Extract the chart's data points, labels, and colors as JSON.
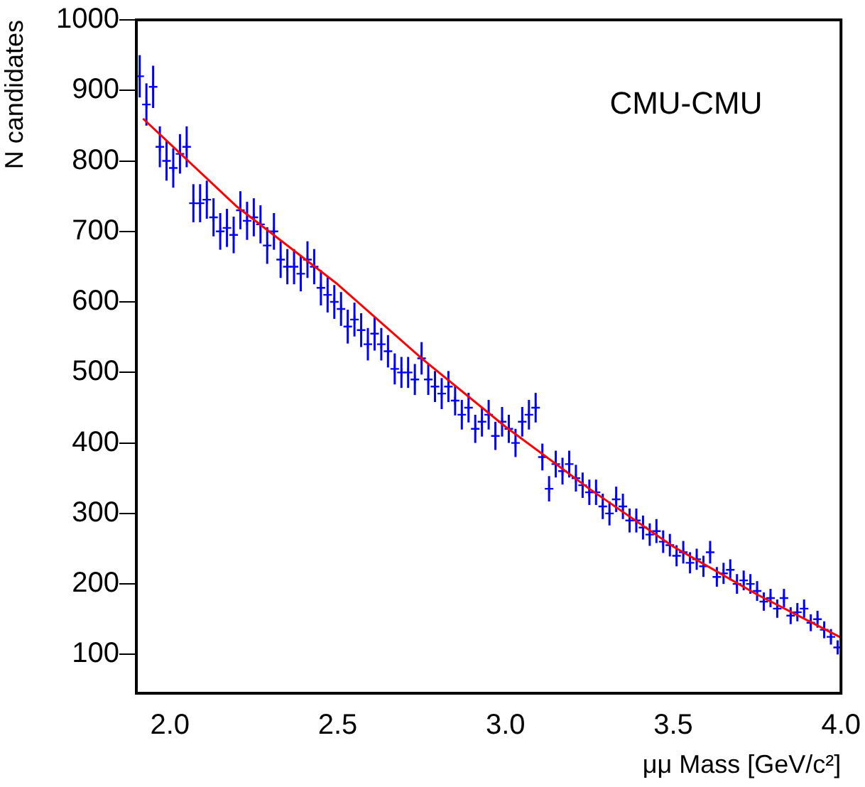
{
  "chart_data": {
    "type": "scatter",
    "xlabel": "μμ Mass [GeV/c²]",
    "ylabel": "N candidates",
    "annotations": [
      "CMU-CMU"
    ],
    "xlim": [
      1.9,
      4.0
    ],
    "ylim": [
      45,
      1000
    ],
    "xticks": [
      {
        "value": 2,
        "label": "2.0"
      },
      {
        "value": 2.5,
        "label": "2.5"
      },
      {
        "value": 3,
        "label": "3.0"
      },
      {
        "value": 3.5,
        "label": "3.5"
      },
      {
        "value": 4,
        "label": "4.0"
      }
    ],
    "yticks": [
      100,
      200,
      300,
      400,
      500,
      600,
      700,
      800,
      900,
      1000
    ],
    "grid": false,
    "legend": false,
    "series": [
      {
        "color": "#0000ff",
        "marker": "cross",
        "x": [
          1.91,
          1.93,
          1.95,
          1.97,
          1.99,
          2.01,
          2.03,
          2.05,
          2.07,
          2.09,
          2.11,
          2.13,
          2.15,
          2.17,
          2.19,
          2.21,
          2.23,
          2.25,
          2.27,
          2.29,
          2.31,
          2.33,
          2.35,
          2.37,
          2.39,
          2.41,
          2.43,
          2.45,
          2.47,
          2.49,
          2.51,
          2.53,
          2.55,
          2.57,
          2.59,
          2.61,
          2.63,
          2.65,
          2.67,
          2.69,
          2.71,
          2.73,
          2.75,
          2.77,
          2.79,
          2.81,
          2.83,
          2.85,
          2.87,
          2.89,
          2.91,
          2.93,
          2.95,
          2.97,
          2.99,
          3.01,
          3.03,
          3.05,
          3.07,
          3.09,
          3.11,
          3.13,
          3.15,
          3.17,
          3.19,
          3.21,
          3.23,
          3.25,
          3.27,
          3.29,
          3.31,
          3.33,
          3.35,
          3.37,
          3.39,
          3.41,
          3.43,
          3.45,
          3.47,
          3.49,
          3.51,
          3.53,
          3.55,
          3.57,
          3.59,
          3.61,
          3.63,
          3.65,
          3.67,
          3.69,
          3.71,
          3.73,
          3.75,
          3.77,
          3.79,
          3.81,
          3.83,
          3.85,
          3.87,
          3.89,
          3.91,
          3.93,
          3.95,
          3.97,
          3.99
        ],
        "values": [
          920,
          880,
          905,
          820,
          800,
          790,
          810,
          820,
          740,
          740,
          745,
          720,
          700,
          705,
          695,
          730,
          715,
          720,
          710,
          680,
          700,
          660,
          650,
          650,
          640,
          660,
          650,
          620,
          610,
          600,
          590,
          565,
          575,
          560,
          540,
          555,
          540,
          530,
          505,
          500,
          500,
          490,
          520,
          490,
          480,
          470,
          480,
          460,
          440,
          450,
          420,
          430,
          440,
          410,
          430,
          420,
          400,
          430,
          440,
          450,
          380,
          335,
          370,
          360,
          370,
          350,
          340,
          330,
          330,
          310,
          300,
          320,
          310,
          290,
          290,
          280,
          270,
          275,
          260,
          255,
          240,
          245,
          230,
          235,
          225,
          245,
          210,
          215,
          220,
          200,
          205,
          200,
          190,
          175,
          180,
          165,
          180,
          155,
          160,
          165,
          145,
          150,
          135,
          125,
          110
        ],
        "errors": [
          30,
          30,
          30,
          29,
          28,
          28,
          28,
          29,
          27,
          27,
          27,
          27,
          26,
          27,
          26,
          27,
          27,
          27,
          27,
          26,
          26,
          26,
          25,
          25,
          25,
          26,
          25,
          25,
          25,
          24,
          24,
          24,
          24,
          24,
          23,
          24,
          23,
          23,
          22,
          22,
          22,
          22,
          23,
          22,
          22,
          22,
          22,
          21,
          21,
          21,
          20,
          21,
          21,
          20,
          21,
          20,
          20,
          21,
          21,
          21,
          19,
          18,
          19,
          19,
          19,
          19,
          18,
          18,
          18,
          18,
          17,
          18,
          18,
          17,
          17,
          17,
          16,
          17,
          16,
          16,
          15,
          16,
          15,
          15,
          15,
          16,
          14,
          15,
          15,
          14,
          14,
          14,
          14,
          13,
          13,
          13,
          13,
          12,
          13,
          13,
          12,
          12,
          12,
          11,
          10
        ]
      },
      {
        "type": "line",
        "marker": "none",
        "color": "#ff0000",
        "x": [
          1.92,
          2.2,
          2.5,
          2.75,
          3.0,
          3.25,
          3.5,
          3.75,
          4.0
        ],
        "values": [
          860,
          735,
          625,
          520,
          423,
          335,
          253,
          185,
          124
        ]
      }
    ]
  }
}
